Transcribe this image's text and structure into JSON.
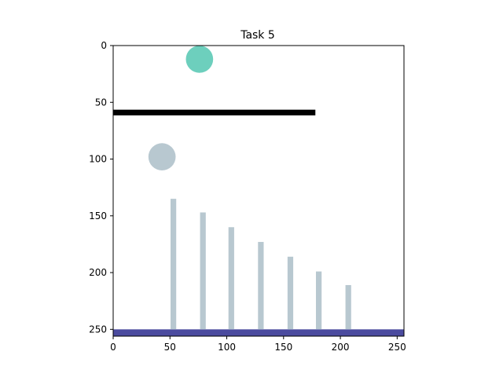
{
  "figure": {
    "title": "Task 5"
  },
  "axes": {
    "xlim": [
      0,
      256
    ],
    "ylim": [
      256,
      0
    ],
    "y_inverted": true,
    "x_ticks": [
      0,
      50,
      100,
      150,
      200,
      250
    ],
    "y_ticks": [
      0,
      50,
      100,
      150,
      200,
      250
    ]
  },
  "scene": {
    "balls": [
      {
        "name": "green-ball",
        "x": 76,
        "y": 12,
        "r": 12,
        "color": "#6dcfbd"
      },
      {
        "name": "grey-ball",
        "x": 43,
        "y": 98,
        "r": 12,
        "color": "#b8c8d0"
      }
    ],
    "bar": {
      "name": "black-bar",
      "x0": 0,
      "x1": 178,
      "y": 59,
      "thickness": 5,
      "color": "#000000"
    },
    "ground": {
      "name": "ground",
      "x0": 0,
      "x1": 256,
      "y0": 250,
      "y1": 256,
      "color": "#4b4b9f"
    },
    "posts": {
      "color": "#b8c8d0",
      "width": 5,
      "items": [
        {
          "x": 53,
          "top": 135
        },
        {
          "x": 79,
          "top": 147
        },
        {
          "x": 104,
          "top": 160
        },
        {
          "x": 130,
          "top": 173
        },
        {
          "x": 156,
          "top": 186
        },
        {
          "x": 181,
          "top": 199
        },
        {
          "x": 207,
          "top": 211
        }
      ]
    }
  }
}
